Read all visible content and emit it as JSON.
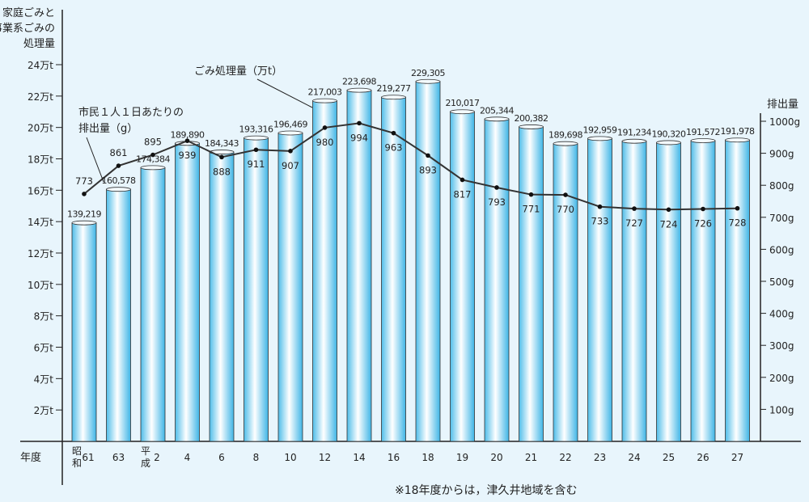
{
  "chart_data": {
    "type": "bar",
    "title": "",
    "left_axis_title": [
      "家庭ごみと",
      "事業系ごみの",
      "処理量"
    ],
    "right_axis_title": "排出量",
    "xlabel": "年度",
    "categories": [
      "61",
      "63",
      "2",
      "4",
      "6",
      "8",
      "10",
      "12",
      "14",
      "16",
      "18",
      "19",
      "20",
      "21",
      "22",
      "23",
      "24",
      "25",
      "26",
      "27"
    ],
    "era_labels": {
      "0": "昭和",
      "2": "平成"
    },
    "series": [
      {
        "name": "ごみ処理量（万t）",
        "type": "bar",
        "axis": "left",
        "unit": "t",
        "values": [
          139219,
          160578,
          174384,
          189890,
          184343,
          193316,
          196469,
          217003,
          223698,
          219277,
          229305,
          210017,
          205344,
          200382,
          189698,
          192959,
          191234,
          190320,
          191572,
          191978
        ]
      },
      {
        "name": "市民１人１日あたりの排出量（g）",
        "type": "line",
        "axis": "right",
        "unit": "g",
        "values": [
          773,
          861,
          895,
          939,
          888,
          911,
          907,
          980,
          994,
          963,
          893,
          817,
          793,
          771,
          770,
          733,
          727,
          724,
          726,
          728
        ]
      }
    ],
    "bar_labels": [
      "139,219",
      "160,578",
      "174,384",
      "189,890",
      "184,343",
      "193,316",
      "196,469",
      "217,003",
      "223,698",
      "219,277",
      "229,305",
      "210,017",
      "205,344",
      "200,382",
      "189,698",
      "192,959",
      "191,234",
      "190,320",
      "191,572",
      "191,978"
    ],
    "left_ylim": [
      0,
      240000
    ],
    "left_ticks": [
      "2万t",
      "4万t",
      "6万t",
      "8万t",
      "10万t",
      "12万t",
      "14万t",
      "16万t",
      "18万t",
      "20万t",
      "22万t",
      "24万t"
    ],
    "right_ylim": [
      0,
      1000
    ],
    "right_ticks": [
      "100g",
      "200g",
      "300g",
      "400g",
      "500g",
      "600g",
      "700g",
      "800g",
      "900g",
      "1000g"
    ],
    "annotations": {
      "bar_series_label": "ごみ処理量（万t）",
      "line_series_label_1": "市民１人１日あたりの",
      "line_series_label_2": "排出量（g）",
      "note": "※18年度からは，津久井地域を含む"
    },
    "grid": false,
    "bar_color": "#5bc3ec"
  }
}
